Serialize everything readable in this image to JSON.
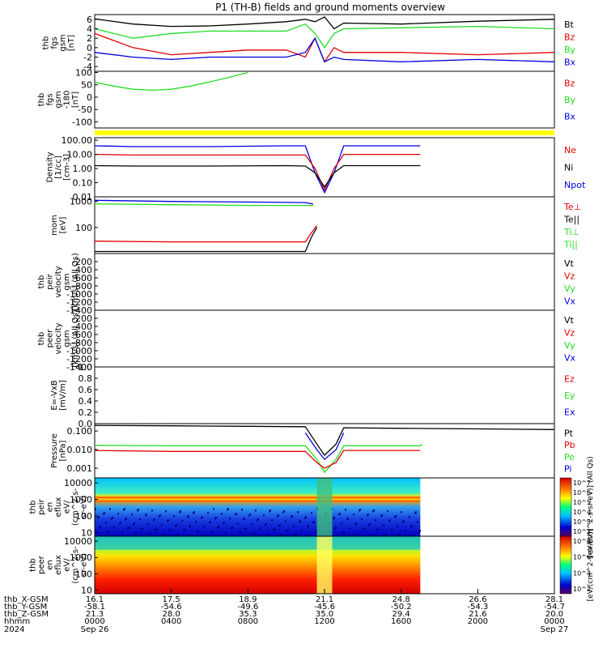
{
  "title": "P1 (TH-B) fields and ground moments overview",
  "colors": {
    "black": "#000000",
    "red": "#e00000",
    "green": "#22dd22",
    "blue": "#0000e0",
    "yellow": "#ffff00"
  },
  "chart_data": [
    {
      "type": "line",
      "panel": "fgs_gsm",
      "ylabel_lines": [
        "thb",
        "fgs",
        "gsm",
        "[nT]"
      ],
      "ylim": [
        -5,
        7
      ],
      "ticks": [
        "6",
        "4",
        "2",
        "0",
        "-2",
        "-4"
      ],
      "tick_values": [
        6,
        4,
        2,
        0,
        -2,
        -4
      ],
      "legend": [
        {
          "label": "Bt",
          "color": "#000000"
        },
        {
          "label": "Bz",
          "color": "#e00000"
        },
        {
          "label": "By",
          "color": "#22dd22"
        },
        {
          "label": "Bx",
          "color": "#0000e0"
        }
      ],
      "series": [
        {
          "name": "Bt",
          "color": "#000000",
          "x": [
            0,
            2,
            4,
            6,
            8,
            10,
            11,
            11.5,
            12,
            12.5,
            13,
            16,
            20,
            24
          ],
          "y": [
            6.1,
            5,
            4.5,
            4.6,
            5,
            5.5,
            6,
            5.5,
            6.5,
            4,
            5.2,
            5,
            5.6,
            6
          ]
        },
        {
          "name": "Bz",
          "color": "#e00000",
          "x": [
            0,
            2,
            4,
            6,
            8,
            10,
            11,
            11.5,
            12,
            12.5,
            13,
            16,
            20,
            24
          ],
          "y": [
            3,
            0,
            -1.5,
            -1,
            -0.5,
            -0.5,
            -2,
            2,
            -3,
            0,
            -1,
            -1,
            -1.5,
            -1
          ]
        },
        {
          "name": "By",
          "color": "#22dd22",
          "x": [
            0,
            2,
            4,
            6,
            8,
            10,
            11,
            11.5,
            12,
            12.5,
            13,
            16,
            20,
            24
          ],
          "y": [
            4,
            2,
            3,
            3.5,
            3.5,
            3.5,
            5,
            3,
            0,
            3,
            4,
            4.2,
            4.5,
            4
          ]
        },
        {
          "name": "Bx",
          "color": "#0000e0",
          "x": [
            0,
            2,
            4,
            6,
            8,
            10,
            11,
            11.5,
            12,
            12.5,
            13,
            16,
            20,
            24
          ],
          "y": [
            -1,
            -2,
            -2.5,
            -2,
            -2,
            -2,
            -1,
            2,
            -3,
            -2,
            -2.5,
            -3,
            -2.5,
            -3
          ]
        }
      ]
    },
    {
      "type": "line",
      "panel": "fgs_gsm_mag",
      "ylabel_lines": [
        "thb",
        "fgs",
        "gsm",
        "-180",
        "[nT]"
      ],
      "ylim": [
        -125,
        105
      ],
      "ticks": [
        "100",
        "50",
        "0",
        "-50",
        "-100"
      ],
      "tick_values": [
        100,
        50,
        0,
        -50,
        -100
      ],
      "legend": [
        {
          "label": "Bz",
          "color": "#e00000"
        },
        {
          "label": "By",
          "color": "#22dd22"
        },
        {
          "label": "Bx",
          "color": "#0000e0"
        }
      ],
      "series": [
        {
          "name": "By",
          "color": "#22dd22",
          "x": [
            0,
            1,
            2,
            3,
            4,
            5,
            6,
            7,
            8
          ],
          "y": [
            60,
            45,
            32,
            28,
            32,
            45,
            62,
            80,
            100
          ]
        }
      ]
    },
    {
      "type": "line",
      "panel": "density",
      "log": true,
      "ylabel_lines": [
        "Density",
        "[1/cc]",
        "[cm-3]"
      ],
      "ylim": [
        0.01,
        150
      ],
      "ticks": [
        "100.00",
        "10.00",
        "1.00",
        "0.10",
        "0.01"
      ],
      "tick_values": [
        100,
        10,
        1,
        0.1,
        0.01
      ],
      "legend": [
        {
          "label": "Ne",
          "color": "#e00000"
        },
        {
          "label": "Ni",
          "color": "#000000"
        },
        {
          "label": "Npot",
          "color": "#0000e0"
        }
      ],
      "series": [
        {
          "name": "Npot",
          "color": "#0000e0",
          "x": [
            0,
            2,
            6,
            10,
            11,
            11.5,
            12,
            12.5,
            13,
            14,
            16,
            17
          ],
          "y": [
            40,
            35,
            35,
            40,
            40,
            0.5,
            0.02,
            0.5,
            40,
            40,
            40,
            40
          ]
        },
        {
          "name": "Ne",
          "color": "#e00000",
          "x": [
            0,
            2,
            6,
            10,
            11,
            11.5,
            12,
            12.5,
            13,
            14,
            16,
            17
          ],
          "y": [
            10,
            9,
            9,
            9,
            9,
            1,
            0.03,
            1,
            10,
            10,
            10,
            10
          ]
        },
        {
          "name": "Ni",
          "color": "#000000",
          "x": [
            0,
            2,
            6,
            10,
            11,
            11.5,
            12,
            12.5,
            13,
            14,
            16,
            17
          ],
          "y": [
            1.6,
            1.5,
            1.5,
            1.6,
            1.5,
            0.5,
            0.05,
            0.5,
            1.6,
            1.6,
            1.6,
            1.6
          ]
        }
      ]
    },
    {
      "type": "line",
      "panel": "temperature",
      "log": true,
      "ylabel_lines": [
        "mom",
        "[eV]"
      ],
      "ylim": [
        10,
        1500
      ],
      "ticks": [
        "1000",
        "100"
      ],
      "tick_values": [
        1000,
        100
      ],
      "legend": [
        {
          "label": "Te⊥",
          "color": "#e00000"
        },
        {
          "label": "Te||",
          "color": "#000000"
        },
        {
          "label": "Ti⊥",
          "color": "#22dd22"
        },
        {
          "label": "Ti||",
          "color": "#22dd22"
        }
      ],
      "series": [
        {
          "name": "Ti⊥",
          "color": "#0000e0",
          "x": [
            0,
            4,
            8,
            11,
            11.4
          ],
          "y": [
            1100,
            1000,
            950,
            900,
            800
          ]
        },
        {
          "name": "Ti||",
          "color": "#22dd22",
          "x": [
            0,
            4,
            8,
            11,
            11.4
          ],
          "y": [
            800,
            750,
            700,
            700,
            700
          ]
        },
        {
          "name": "Te⊥",
          "color": "#e00000",
          "x": [
            0,
            4,
            8,
            11,
            11.3,
            11.6
          ],
          "y": [
            30,
            28,
            28,
            28,
            60,
            120
          ]
        },
        {
          "name": "Te||",
          "color": "#000000",
          "x": [
            0,
            4,
            8,
            11,
            11.3,
            11.6
          ],
          "y": [
            12,
            12,
            12,
            12,
            40,
            100
          ]
        }
      ]
    },
    {
      "type": "line",
      "panel": "peir_velocity",
      "ylabel_lines": [
        "thb",
        "peir",
        "velocity",
        "gsm",
        "[km/s] (All Qs)"
      ],
      "ylim": [
        -1400,
        0
      ],
      "ticks": [
        "-200",
        "-400",
        "-600",
        "-800",
        "-1000",
        "-1200",
        "-1400"
      ],
      "tick_values": [
        -200,
        -400,
        -600,
        -800,
        -1000,
        -1200,
        -1400
      ],
      "legend": [
        {
          "label": "Vt",
          "color": "#000000"
        },
        {
          "label": "Vz",
          "color": "#e00000"
        },
        {
          "label": "Vy",
          "color": "#22dd22"
        },
        {
          "label": "Vx",
          "color": "#0000e0"
        }
      ],
      "series": []
    },
    {
      "type": "line",
      "panel": "peer_velocity",
      "ylabel_lines": [
        "thb",
        "peer",
        "velocity",
        "gsm",
        "[km/s] (All Qs)"
      ],
      "ylim": [
        -1400,
        0
      ],
      "ticks": [
        "-200",
        "-400",
        "-600",
        "-800",
        "-1000",
        "-1200",
        "-1400"
      ],
      "tick_values": [
        -200,
        -400,
        -600,
        -800,
        -1000,
        -1200,
        -1400
      ],
      "legend": [
        {
          "label": "Vt",
          "color": "#000000"
        },
        {
          "label": "Vz",
          "color": "#e00000"
        },
        {
          "label": "Vy",
          "color": "#22dd22"
        },
        {
          "label": "Vx",
          "color": "#0000e0"
        }
      ],
      "series": []
    },
    {
      "type": "line",
      "panel": "efield",
      "ylabel_lines": [
        "E=-VxB",
        "[mV/m]"
      ],
      "ylim": [
        0,
        1.0
      ],
      "ticks": [
        "1.0",
        "0.8",
        "0.6",
        "0.4",
        "0.2",
        "0.0"
      ],
      "tick_values": [
        1.0,
        0.8,
        0.6,
        0.4,
        0.2,
        0.0
      ],
      "legend": [
        {
          "label": "Ez",
          "color": "#e00000"
        },
        {
          "label": "Ey",
          "color": "#22dd22"
        },
        {
          "label": "Ex",
          "color": "#0000e0"
        }
      ],
      "series": []
    },
    {
      "type": "line",
      "panel": "pressure",
      "log": true,
      "ylabel_lines": [
        "Pressure",
        "[nPa]"
      ],
      "ylim": [
        0.0003,
        0.25
      ],
      "ticks": [
        "0.100",
        "0.010",
        "0.001"
      ],
      "tick_values": [
        0.1,
        0.01,
        0.001
      ],
      "legend": [
        {
          "label": "Pt",
          "color": "#000000"
        },
        {
          "label": "Pb",
          "color": "#e00000"
        },
        {
          "label": "Pe",
          "color": "#22dd22"
        },
        {
          "label": "Pi",
          "color": "#0000e0"
        }
      ],
      "series": [
        {
          "name": "Pt",
          "color": "#000000",
          "x": [
            0,
            4,
            8,
            11,
            11.6,
            12,
            12.6,
            13,
            16,
            20,
            24
          ],
          "y": [
            0.2,
            0.19,
            0.18,
            0.17,
            0.02,
            0.005,
            0.02,
            0.15,
            0.14,
            0.13,
            0.12
          ]
        },
        {
          "name": "Pe",
          "color": "#22dd22",
          "x": [
            0,
            4,
            8,
            11,
            11.6,
            12,
            12.6,
            13,
            16,
            17,
            17.1
          ],
          "y": [
            0.017,
            0.016,
            0.016,
            0.016,
            0.003,
            0.0006,
            0.003,
            0.016,
            0.016,
            0.016,
            0.02
          ]
        },
        {
          "name": "Pb",
          "color": "#e00000",
          "x": [
            0,
            4,
            8,
            11,
            11.6,
            12,
            12.6,
            13,
            16,
            17
          ],
          "y": [
            0.009,
            0.008,
            0.008,
            0.008,
            0.002,
            0.001,
            0.002,
            0.009,
            0.009,
            0.009
          ]
        },
        {
          "name": "Pi",
          "color": "#0000e0",
          "x": [
            11,
            11.6,
            12,
            12.6,
            13
          ],
          "y": [
            0.08,
            0.01,
            0.003,
            0.01,
            0.08
          ]
        }
      ]
    },
    {
      "type": "heatmap",
      "panel": "peir_eflux",
      "ylabel_lines": [
        "thb",
        "peir",
        "en",
        "eflux",
        "eV/",
        "(cm^2-s-",
        "sr-eV)"
      ],
      "ticks": [
        "10000",
        "1000",
        "100",
        "10"
      ],
      "tick_values": [
        10000,
        1000,
        100,
        10
      ],
      "colorbar_label": "[eV/(cm^2-s-sr-eV)] (All Qs)",
      "colorbar_ticks": [
        "10^7",
        "10^6",
        "10^5",
        "10^4",
        "10^3",
        "10^2"
      ]
    },
    {
      "type": "heatmap",
      "panel": "peer_eflux",
      "ylabel_lines": [
        "thb",
        "peer",
        "en",
        "eflux",
        "eV/",
        "(cm^2-s-",
        "sr-eV)"
      ],
      "ticks": [
        "10000",
        "1000",
        "100",
        "10"
      ],
      "tick_values": [
        10000,
        1000,
        100,
        10
      ],
      "colorbar_label": "[eV/(cm^2-s-sr-eV)]",
      "colorbar_ticks": [
        "10^8",
        "10^6",
        "10^4",
        "10^2"
      ]
    }
  ],
  "axis_table": {
    "row_labels": [
      "thb_X-GSM",
      "thb_Y-GSM",
      "thb_Z-GSM",
      "hhmm",
      "2024"
    ],
    "columns": [
      [
        "16.1",
        "-58.1",
        "21.3",
        "0000",
        "Sep 26"
      ],
      [
        "17.5",
        "-54.6",
        "28.0",
        "0400",
        ""
      ],
      [
        "18.9",
        "-49.6",
        "35.3",
        "0800",
        ""
      ],
      [
        "21.1",
        "-45.6",
        "35.0",
        "1200",
        ""
      ],
      [
        "24.8",
        "-50.2",
        "29.4",
        "1600",
        ""
      ],
      [
        "26.6",
        "-54.3",
        "21.6",
        "2000",
        ""
      ],
      [
        "28.1",
        "-54.7",
        "20.0",
        "0000",
        "Sep 27"
      ]
    ]
  }
}
